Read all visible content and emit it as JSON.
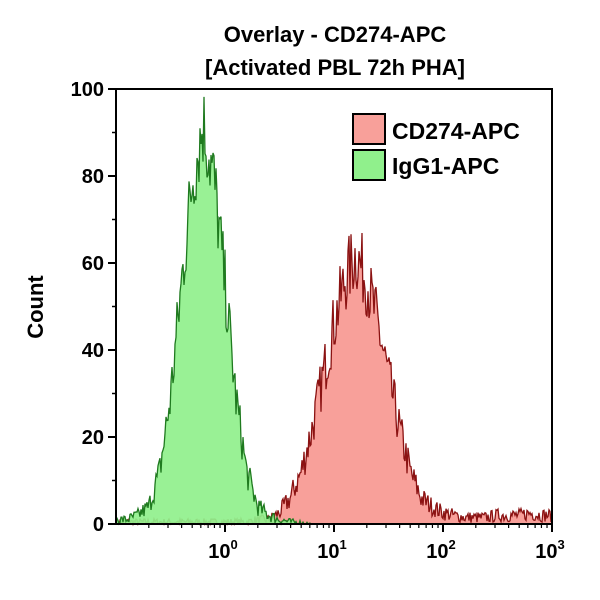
{
  "chart_data": {
    "type": "area",
    "title": "Overlay - CD274-APC",
    "subtitle": "[Activated PBL 72h PHA]",
    "xlabel": "",
    "ylabel": "Count",
    "xscale": "log",
    "xlim": [
      0.1,
      1000
    ],
    "ylim": [
      0,
      100
    ],
    "xticks": [
      {
        "base": "10",
        "exp": "0",
        "value": 1
      },
      {
        "base": "10",
        "exp": "1",
        "value": 10
      },
      {
        "base": "10",
        "exp": "2",
        "value": 100
      },
      {
        "base": "10",
        "exp": "3",
        "value": 1000
      }
    ],
    "yticks": [
      "0",
      "20",
      "40",
      "60",
      "80",
      "100"
    ],
    "grid": false,
    "legend_placement": "top-right",
    "x": [
      0.1,
      0.126,
      0.158,
      0.2,
      0.251,
      0.316,
      0.398,
      0.501,
      0.631,
      0.794,
      1,
      1.26,
      1.58,
      2,
      2.51,
      3.16,
      3.98,
      5.01,
      6.31,
      7.94,
      10,
      12.6,
      15.8,
      20,
      25.1,
      31.6,
      39.8,
      50.1,
      63.1,
      79.4,
      100,
      126,
      158,
      200,
      251,
      316,
      398,
      501,
      631,
      794,
      1000
    ],
    "series": [
      {
        "name": "CD274-APC",
        "fill": "#f8a09a",
        "stroke": "#8b1212",
        "values": [
          0.5,
          0.5,
          0.5,
          0.5,
          0.5,
          0.5,
          0.5,
          0.5,
          0.5,
          0.5,
          0.5,
          0.5,
          0.5,
          1,
          1,
          2.6,
          6,
          12,
          22,
          34,
          46,
          56,
          62,
          56,
          46,
          34,
          22,
          12,
          6,
          4,
          2.6,
          2,
          1.5,
          1.5,
          1.5,
          2,
          2,
          2,
          2.5,
          2,
          2
        ]
      },
      {
        "name": "IgG1-APC",
        "fill": "#90f08c",
        "stroke": "#1f7a1f",
        "values": [
          1,
          1,
          2,
          4,
          12,
          29,
          55,
          79,
          92,
          79,
          55,
          29,
          12,
          4,
          2,
          1,
          0.5,
          0.3,
          0,
          0,
          0,
          0,
          0,
          0,
          0,
          0,
          0,
          0,
          0,
          0,
          0,
          0,
          0,
          0,
          0,
          0,
          0,
          0,
          0,
          0,
          0
        ]
      }
    ]
  }
}
